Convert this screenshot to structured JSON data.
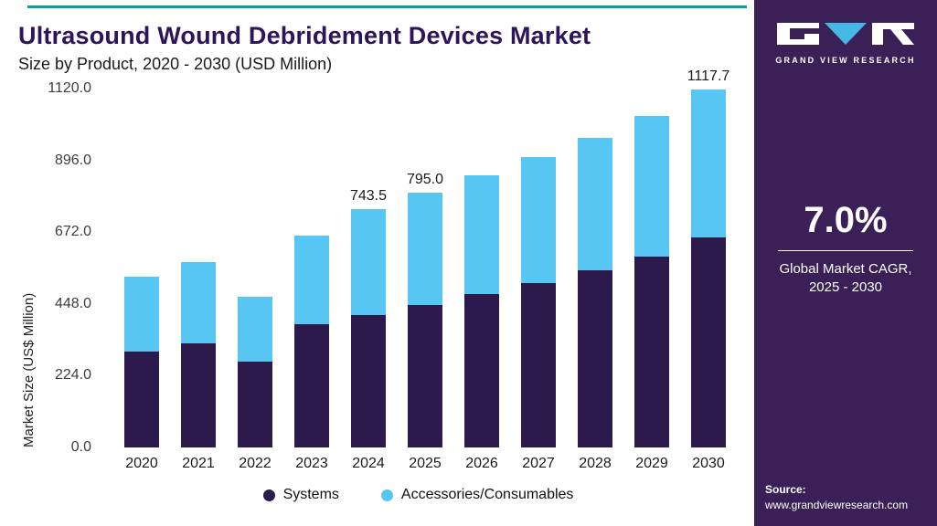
{
  "colors": {
    "teal_accent": "#00A79B",
    "sidebar_bg": "#3A2056",
    "title_text": "#2D155C",
    "systems_bar": "#2C1A4D",
    "accessories_bar": "#57C6F2",
    "logo_triangle": "#45B8E6"
  },
  "header": {
    "title": "Ultrasound Wound Debridement Devices Market",
    "subtitle": "Size by Product, 2020 - 2030 (USD Million)"
  },
  "sidebar": {
    "logo_text": "GRAND VIEW RESEARCH",
    "cagr_value": "7.0%",
    "cagr_label_line1": "Global Market CAGR,",
    "cagr_label_line2": "2025 - 2030",
    "source_label": "Source:",
    "source_url": "www.grandviewresearch.com"
  },
  "chart_data": {
    "type": "bar",
    "stacked": true,
    "title": "Ultrasound Wound Debridement Devices Market Size by Product, 2020 - 2030 (USD Million)",
    "xlabel": "",
    "ylabel": "Market Size (US$ Million)",
    "ylim": [
      0,
      1120
    ],
    "yticks": [
      0.0,
      224.0,
      448.0,
      672.0,
      896.0,
      1120.0
    ],
    "grid": false,
    "legend_position": "bottom",
    "categories": [
      "2020",
      "2021",
      "2022",
      "2023",
      "2024",
      "2025",
      "2026",
      "2027",
      "2028",
      "2029",
      "2030"
    ],
    "series": [
      {
        "name": "Systems",
        "color": "#2C1A4D",
        "values": [
          300,
          326,
          267,
          386,
          414,
          445,
          478,
          513,
          552,
          596,
          655
        ]
      },
      {
        "name": "Accessories/Consumables",
        "color": "#57C6F2",
        "values": [
          233,
          252,
          204,
          274,
          329.5,
          350,
          372,
          392,
          413,
          439,
          462.7
        ]
      }
    ],
    "totals": [
      533,
      578,
      471,
      660,
      743.5,
      795.0,
      850,
      905,
      965,
      1035,
      1117.7
    ],
    "value_labels": {
      "2024": "743.5",
      "2025": "795.0",
      "2030": "1117.7"
    }
  }
}
